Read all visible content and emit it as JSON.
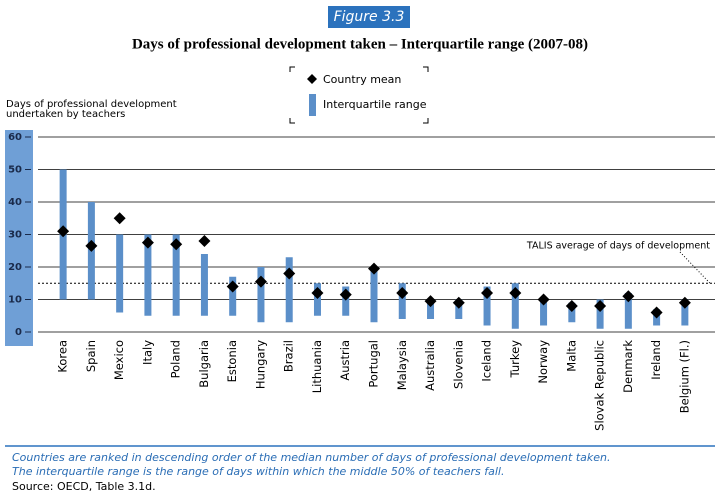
{
  "chart_data": {
    "type": "range",
    "figure_label": "Figure 3.3",
    "title": "Days of professional development taken – Interquartile range (2007-08)",
    "ylabel": [
      "Days of professional development",
      "undertaken by teachers"
    ],
    "categories": [
      "Korea",
      "Spain",
      "Mexico",
      "Italy",
      "Poland",
      "Bulgaria",
      "Estonia",
      "Hungary",
      "Brazil",
      "Lithuania",
      "Austria",
      "Portugal",
      "Malaysia",
      "Australia",
      "Slovenia",
      "Iceland",
      "Turkey",
      "Norway",
      "Malta",
      "Slovak Republic",
      "Denmark",
      "Ireland",
      "Belgium (Fl.)"
    ],
    "series": [
      {
        "name": "Country mean",
        "color": "#000000",
        "values": [
          31,
          26.5,
          35,
          27.5,
          27,
          28,
          14,
          15.5,
          18,
          12,
          11.5,
          19.5,
          12,
          9.5,
          9,
          12,
          12,
          10,
          8,
          8,
          11,
          6,
          9
        ]
      },
      {
        "name": "Interquartile range",
        "color": "#5b8fc9",
        "low": [
          10,
          10,
          6,
          5,
          5,
          5,
          5,
          3,
          3,
          5,
          5,
          3,
          4,
          4,
          4,
          2,
          1,
          2,
          3,
          1,
          1,
          2,
          2
        ],
        "high": [
          50,
          40,
          30,
          30,
          30,
          24,
          17,
          20,
          23,
          15,
          14,
          20,
          15,
          10,
          10,
          14,
          15,
          10,
          9,
          10,
          12,
          7,
          10
        ]
      }
    ],
    "ylim": [
      0,
      60
    ],
    "yticks": [
      0,
      10,
      20,
      30,
      40,
      50,
      60
    ],
    "grid": true,
    "reference": {
      "value": 15,
      "label": "TALIS average of days of development"
    },
    "notes": [
      "Countries are ranked in descending order of the median number of days of professional development taken.",
      "The interquartile range is the range of days within which the middle 50% of teachers fall."
    ],
    "source": "Source: OECD, Table 3.1d."
  }
}
